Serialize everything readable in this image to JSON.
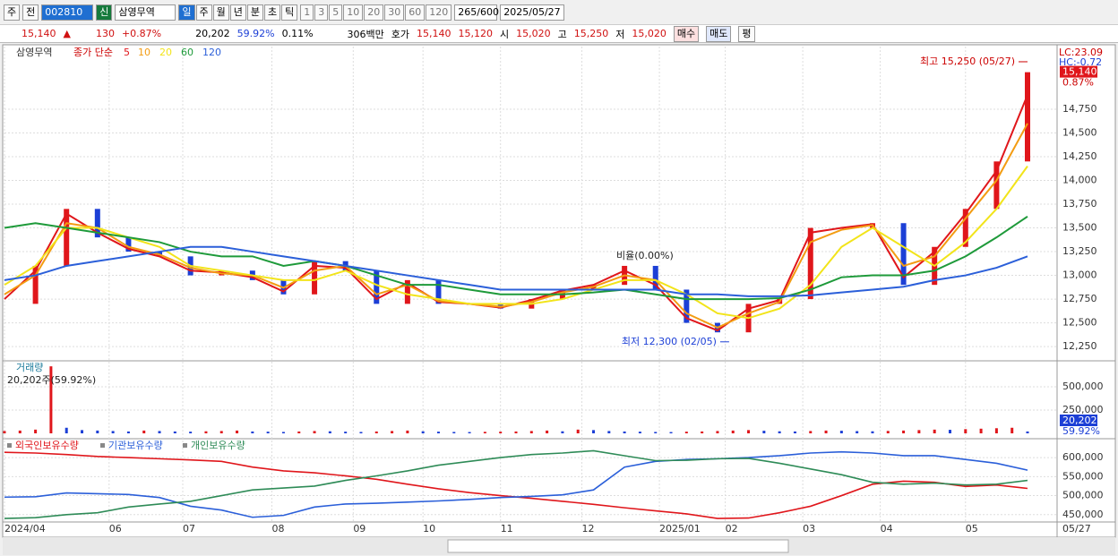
{
  "toolbar": {
    "market": "주",
    "prev": "전",
    "code": "002810",
    "badge": "신",
    "name": "삼영무역",
    "periods": [
      "일",
      "주",
      "월",
      "년",
      "분",
      "초",
      "틱"
    ],
    "intervals": [
      "1",
      "3",
      "5",
      "10",
      "20",
      "30",
      "60",
      "120"
    ],
    "count": "265",
    "max": "/600",
    "date": "2025/05/27"
  },
  "info": {
    "price": "15,140",
    "arrow": "▲",
    "change": "130",
    "rate": "+0.87%",
    "volume": "20,202",
    "vol_rate": "59.92%",
    "turnover": "0.11%",
    "amount": "306백만",
    "quote_label": "호가",
    "ask": "15,140",
    "bid": "15,120",
    "open_label": "시",
    "open": "15,020",
    "high_label": "고",
    "high": "15,250",
    "low_label": "저",
    "low": "15,020",
    "buy": "매수",
    "sell": "매도",
    "avg": "평"
  },
  "xaxis": {
    "xlim": [
      0,
      264
    ],
    "xticks": [
      {
        "value": 0,
        "label": "2024/04"
      },
      {
        "value": 27,
        "label": "06"
      },
      {
        "value": 46,
        "label": "07"
      },
      {
        "value": 69,
        "label": "08"
      },
      {
        "value": 90,
        "label": "09"
      },
      {
        "value": 108,
        "label": "10"
      },
      {
        "value": 128,
        "label": "11"
      },
      {
        "value": 149,
        "label": "12"
      },
      {
        "value": 169,
        "label": "2025/01"
      },
      {
        "value": 186,
        "label": "02"
      },
      {
        "value": 206,
        "label": "03"
      },
      {
        "value": 226,
        "label": "04"
      },
      {
        "value": 248,
        "label": "05"
      }
    ],
    "last": "05/27"
  },
  "chart_data": [
    {
      "type": "line",
      "title": "삼영무역",
      "legend_label": "종가 단순",
      "lc": "LC:23.09",
      "hc": "HC:-0.72",
      "last_label": "15,140",
      "last_rate": "0.87%",
      "up_color": "#e0161b",
      "down_color": "#1c3fd6",
      "x": [
        0,
        8,
        16,
        24,
        32,
        40,
        48,
        56,
        64,
        72,
        80,
        88,
        96,
        104,
        112,
        120,
        128,
        136,
        144,
        152,
        160,
        168,
        176,
        184,
        192,
        200,
        208,
        216,
        224,
        232,
        240,
        248,
        256,
        264
      ],
      "values": [
        12700,
        13100,
        13700,
        13400,
        13250,
        13200,
        13000,
        13050,
        12950,
        12800,
        13150,
        13050,
        12700,
        12950,
        12700,
        12700,
        12650,
        12750,
        12850,
        12900,
        13100,
        12850,
        12500,
        12400,
        12700,
        12750,
        13500,
        13500,
        13550,
        12900,
        13300,
        13700,
        14200,
        15140
      ],
      "series": [
        {
          "name": "5",
          "color": "#e0161b",
          "values": [
            12750,
            13050,
            13650,
            13450,
            13280,
            13200,
            13050,
            13030,
            12980,
            12830,
            13100,
            13080,
            12750,
            12920,
            12720,
            12700,
            12660,
            12740,
            12840,
            12900,
            13050,
            12900,
            12550,
            12420,
            12650,
            12740,
            13450,
            13500,
            13540,
            12980,
            13250,
            13650,
            14100,
            14900
          ]
        },
        {
          "name": "10",
          "color": "#f39c12",
          "values": [
            12800,
            13000,
            13550,
            13500,
            13300,
            13220,
            13080,
            13020,
            13000,
            12870,
            13050,
            13100,
            12800,
            12900,
            12730,
            12700,
            12670,
            12720,
            12820,
            12880,
            13000,
            12950,
            12600,
            12450,
            12600,
            12720,
            13350,
            13480,
            13530,
            13100,
            13200,
            13600,
            14000,
            14600
          ]
        },
        {
          "name": "20",
          "color": "#f2e41a",
          "values": [
            12900,
            13100,
            13500,
            13500,
            13400,
            13300,
            13100,
            13050,
            13000,
            12950,
            12950,
            13050,
            12900,
            12800,
            12750,
            12700,
            12700,
            12700,
            12750,
            12850,
            12950,
            12950,
            12800,
            12600,
            12550,
            12650,
            12900,
            13300,
            13500,
            13300,
            13100,
            13350,
            13700,
            14150
          ]
        },
        {
          "name": "60",
          "color": "#1e9a3a",
          "values": [
            13500,
            13550,
            13500,
            13450,
            13400,
            13350,
            13250,
            13200,
            13200,
            13100,
            13150,
            13100,
            13000,
            12900,
            12900,
            12850,
            12800,
            12800,
            12800,
            12820,
            12850,
            12800,
            12750,
            12750,
            12750,
            12760,
            12850,
            12980,
            13000,
            13000,
            13050,
            13200,
            13400,
            13620
          ]
        },
        {
          "name": "120",
          "color": "#2b5fd9",
          "values": [
            12950,
            13000,
            13100,
            13150,
            13200,
            13250,
            13300,
            13300,
            13250,
            13200,
            13150,
            13100,
            13050,
            13000,
            12950,
            12900,
            12850,
            12850,
            12850,
            12850,
            12850,
            12850,
            12800,
            12800,
            12780,
            12780,
            12790,
            12820,
            12850,
            12880,
            12950,
            13000,
            13080,
            13200
          ]
        }
      ],
      "ylim": [
        12100,
        15410
      ],
      "yticks": [
        {
          "value": 14750,
          "label": "14,750"
        },
        {
          "value": 14500,
          "label": "14,500"
        },
        {
          "value": 14250,
          "label": "14,250"
        },
        {
          "value": 14000,
          "label": "14,000"
        },
        {
          "value": 13750,
          "label": "13,750"
        },
        {
          "value": 13500,
          "label": "13,500"
        },
        {
          "value": 13250,
          "label": "13,250"
        },
        {
          "value": 13000,
          "label": "13,000"
        },
        {
          "value": 12750,
          "label": "12,750"
        },
        {
          "value": 12500,
          "label": "12,500"
        },
        {
          "value": 12250,
          "label": "12,250"
        }
      ],
      "annotations": [
        {
          "text": "최고 15,250 (05/27)",
          "x": 264,
          "value": 15250
        },
        {
          "text": "최저 12,300 (02/05)",
          "x": 187,
          "value": 12300
        }
      ],
      "note": "비율(0.00%)"
    },
    {
      "type": "bar",
      "title": "거래량",
      "annotation": "20,202주(59.92%)",
      "last_label": "20,202",
      "last_rate": "59.92%",
      "up_color": "#e0161b",
      "down_color": "#1c3fd6",
      "x": [
        0,
        4,
        8,
        12,
        16,
        20,
        24,
        28,
        32,
        36,
        40,
        44,
        48,
        52,
        56,
        60,
        64,
        68,
        72,
        76,
        80,
        84,
        88,
        92,
        96,
        100,
        104,
        108,
        112,
        116,
        120,
        124,
        128,
        132,
        136,
        140,
        144,
        148,
        152,
        156,
        160,
        164,
        168,
        172,
        176,
        180,
        184,
        188,
        192,
        196,
        200,
        204,
        208,
        212,
        216,
        220,
        224,
        228,
        232,
        236,
        240,
        244,
        248,
        252,
        256,
        260,
        264
      ],
      "values": [
        25000,
        30000,
        40000,
        720000,
        60000,
        35000,
        30000,
        25000,
        20000,
        30000,
        25000,
        20000,
        18000,
        22000,
        25000,
        30000,
        20000,
        18000,
        15000,
        20000,
        25000,
        22000,
        18000,
        15000,
        20000,
        25000,
        30000,
        22000,
        18000,
        15000,
        14000,
        16000,
        18000,
        20000,
        25000,
        30000,
        22000,
        40000,
        35000,
        25000,
        20000,
        18000,
        15000,
        14000,
        18000,
        20000,
        25000,
        30000,
        35000,
        28000,
        22000,
        20000,
        25000,
        30000,
        28000,
        24000,
        22000,
        26000,
        30000,
        35000,
        40000,
        38000,
        45000,
        50000,
        55000,
        60000,
        20202
      ],
      "ylim": [
        0,
        760000
      ],
      "yticks": [
        {
          "value": 500000,
          "label": "500,000"
        },
        {
          "value": 250000,
          "label": "250,000"
        }
      ]
    },
    {
      "type": "line",
      "x": [
        0,
        8,
        16,
        24,
        32,
        40,
        48,
        56,
        64,
        72,
        80,
        88,
        96,
        104,
        112,
        120,
        128,
        136,
        144,
        152,
        160,
        168,
        176,
        184,
        192,
        200,
        208,
        216,
        224,
        232,
        240,
        248,
        256,
        264
      ],
      "series": [
        {
          "name": "외국인보유수량",
          "color": "#e0161b",
          "values": [
            614000,
            612000,
            608000,
            603000,
            600000,
            597000,
            594000,
            590000,
            575000,
            565000,
            560000,
            552000,
            543000,
            530000,
            518000,
            508000,
            500000,
            493000,
            485000,
            477000,
            468000,
            460000,
            452000,
            440000,
            441000,
            455000,
            472000,
            500000,
            530000,
            538000,
            535000,
            524000,
            528000,
            519000
          ]
        },
        {
          "name": "기관보유수량",
          "color": "#2b5fd9",
          "values": [
            496000,
            497000,
            507000,
            505000,
            503000,
            495000,
            472000,
            462000,
            443000,
            448000,
            470000,
            478000,
            480000,
            483000,
            486000,
            490000,
            495000,
            498000,
            502000,
            515000,
            575000,
            590000,
            595000,
            597000,
            600000,
            605000,
            612000,
            615000,
            612000,
            605000,
            605000,
            595000,
            585000,
            567000
          ]
        },
        {
          "name": "개인보유수량",
          "color": "#2e8b57",
          "values": [
            440000,
            442000,
            450000,
            455000,
            470000,
            478000,
            485000,
            500000,
            515000,
            520000,
            525000,
            540000,
            552000,
            565000,
            580000,
            590000,
            600000,
            608000,
            612000,
            618000,
            605000,
            592000,
            593000,
            597000,
            598000,
            585000,
            570000,
            555000,
            535000,
            530000,
            533000,
            528000,
            530000,
            540000
          ]
        }
      ],
      "ylim": [
        433000,
        645000
      ],
      "yticks": [
        {
          "value": 600000,
          "label": "600,000"
        },
        {
          "value": 550000,
          "label": "550,000"
        },
        {
          "value": 500000,
          "label": "500,000"
        },
        {
          "value": 450000,
          "label": "450,000"
        }
      ]
    }
  ]
}
